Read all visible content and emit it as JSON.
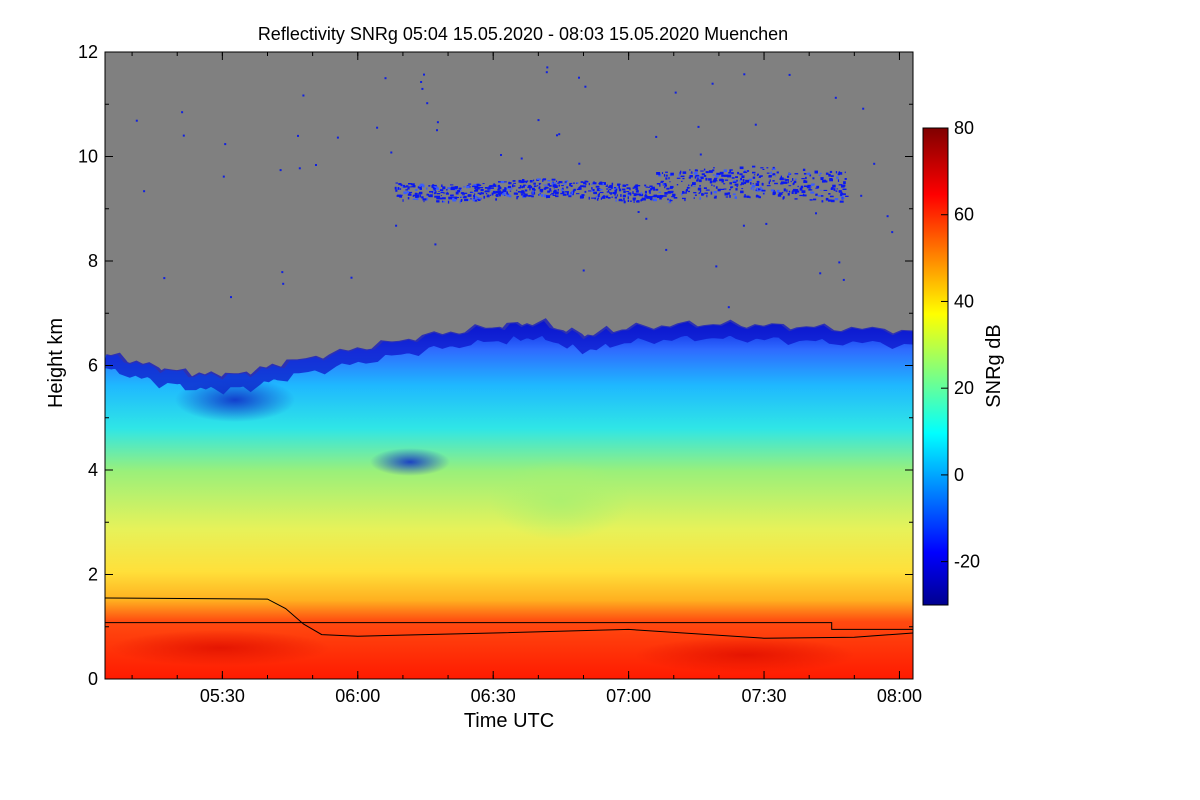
{
  "chart_data": {
    "type": "heatmap",
    "title": "Reflectivity SNRg   05:04 15.05.2020 - 08:03 15.05.2020 Muenchen",
    "xlabel": "Time UTC",
    "ylabel": "Height km",
    "xlim": [
      "05:04",
      "08:03"
    ],
    "ylim": [
      0,
      12
    ],
    "x_ticks": [
      "05:30",
      "06:00",
      "06:30",
      "07:00",
      "07:30",
      "08:00"
    ],
    "y_ticks": [
      "0",
      "2",
      "4",
      "6",
      "8",
      "10",
      "12"
    ],
    "colorbar": {
      "label": "SNRg dB",
      "range": [
        -30,
        80
      ],
      "ticks": [
        "-20",
        "0",
        "20",
        "40",
        "60",
        "80"
      ],
      "colormap": "jet",
      "background_color": "#808080"
    },
    "echo_top_km": [
      {
        "time": "05:04",
        "height": 6.2
      },
      {
        "time": "05:15",
        "height": 5.95
      },
      {
        "time": "05:25",
        "height": 5.8
      },
      {
        "time": "05:35",
        "height": 5.82
      },
      {
        "time": "05:45",
        "height": 6.05
      },
      {
        "time": "06:00",
        "height": 6.3
      },
      {
        "time": "06:15",
        "height": 6.55
      },
      {
        "time": "06:30",
        "height": 6.72
      },
      {
        "time": "06:40",
        "height": 6.8
      },
      {
        "time": "06:50",
        "height": 6.55
      },
      {
        "time": "07:00",
        "height": 6.7
      },
      {
        "time": "07:15",
        "height": 6.78
      },
      {
        "time": "07:30",
        "height": 6.75
      },
      {
        "time": "07:45",
        "height": 6.7
      },
      {
        "time": "08:03",
        "height": 6.65
      }
    ],
    "upper_cloud_layer_km": {
      "time_start": "06:08",
      "time_end": "07:48",
      "bottom": 9.1,
      "top": 9.7
    },
    "series": [
      {
        "x": [
          "05:04",
          "05:40",
          "05:44",
          "05:48",
          "05:52",
          "06:00",
          "06:30",
          "07:00",
          "07:30",
          "07:50",
          "08:03"
        ],
        "y": [
          1.55,
          1.53,
          1.35,
          1.05,
          0.85,
          0.82,
          0.88,
          0.95,
          0.78,
          0.8,
          0.88
        ]
      },
      {
        "x": [
          "05:04",
          "07:45",
          "07:45",
          "08:03"
        ],
        "y": [
          1.08,
          1.08,
          0.95,
          0.95
        ]
      }
    ]
  }
}
